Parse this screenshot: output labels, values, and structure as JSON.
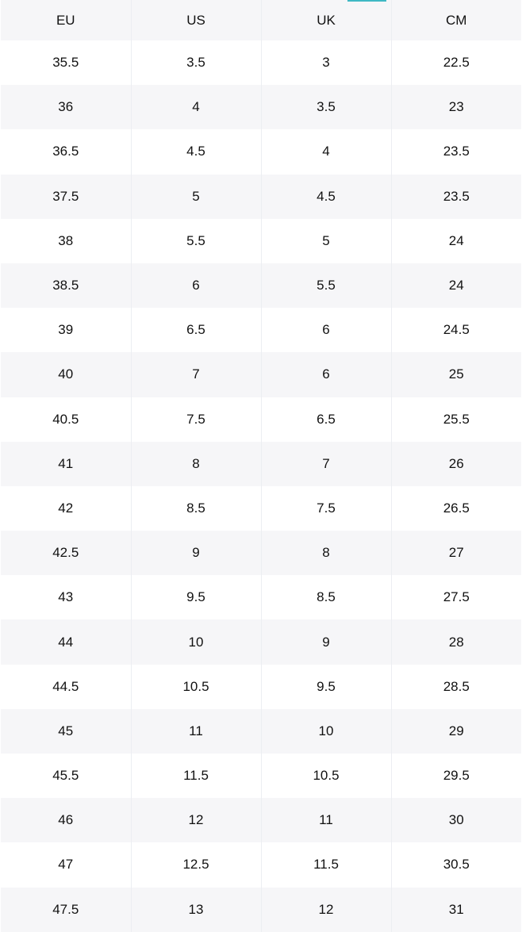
{
  "accent_color": "#3fb8c4",
  "size_chart": {
    "headers": [
      "EU",
      "US",
      "UK",
      "CM"
    ],
    "rows": [
      [
        "35.5",
        "3.5",
        "3",
        "22.5"
      ],
      [
        "36",
        "4",
        "3.5",
        "23"
      ],
      [
        "36.5",
        "4.5",
        "4",
        "23.5"
      ],
      [
        "37.5",
        "5",
        "4.5",
        "23.5"
      ],
      [
        "38",
        "5.5",
        "5",
        "24"
      ],
      [
        "38.5",
        "6",
        "5.5",
        "24"
      ],
      [
        "39",
        "6.5",
        "6",
        "24.5"
      ],
      [
        "40",
        "7",
        "6",
        "25"
      ],
      [
        "40.5",
        "7.5",
        "6.5",
        "25.5"
      ],
      [
        "41",
        "8",
        "7",
        "26"
      ],
      [
        "42",
        "8.5",
        "7.5",
        "26.5"
      ],
      [
        "42.5",
        "9",
        "8",
        "27"
      ],
      [
        "43",
        "9.5",
        "8.5",
        "27.5"
      ],
      [
        "44",
        "10",
        "9",
        "28"
      ],
      [
        "44.5",
        "10.5",
        "9.5",
        "28.5"
      ],
      [
        "45",
        "11",
        "10",
        "29"
      ],
      [
        "45.5",
        "11.5",
        "10.5",
        "29.5"
      ],
      [
        "46",
        "12",
        "11",
        "30"
      ],
      [
        "47",
        "12.5",
        "11.5",
        "30.5"
      ],
      [
        "47.5",
        "13",
        "12",
        "31"
      ]
    ]
  }
}
